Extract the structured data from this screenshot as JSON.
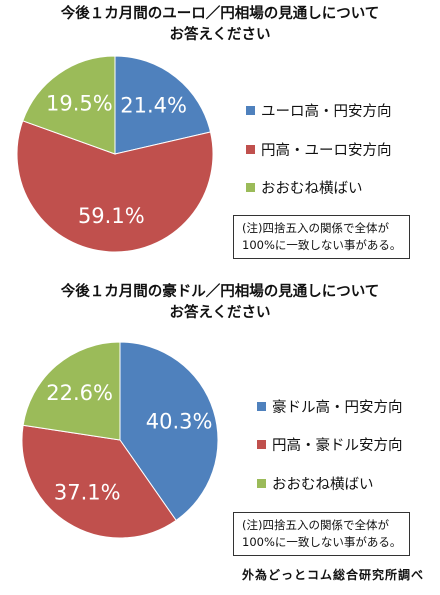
{
  "chart_data": [
    {
      "type": "pie",
      "title_line1": "今後１カ月間のユーロ／円相場の見通しについて",
      "title_line2": "お答えください",
      "slices": [
        {
          "label": "ユーロ高・円安方向",
          "value": 21.4,
          "display": "21.4%",
          "color": "#4f81bd"
        },
        {
          "label": "円高・ユーロ安方向",
          "value": 59.1,
          "display": "59.1%",
          "color": "#c0504d"
        },
        {
          "label": "おおむね横ばい",
          "value": 19.5,
          "display": "19.5%",
          "color": "#9bbb59"
        }
      ],
      "legend_position": "right",
      "note_line1": "(注)四捨五入の関係で全体が",
      "note_line2": "100%に一致しない事がある。"
    },
    {
      "type": "pie",
      "title_line1": "今後１カ月間の豪ドル／円相場の見通しについて",
      "title_line2": "お答えください",
      "slices": [
        {
          "label": "豪ドル高・円安方向",
          "value": 40.3,
          "display": "40.3%",
          "color": "#4f81bd"
        },
        {
          "label": "円高・豪ドル安方向",
          "value": 37.1,
          "display": "37.1%",
          "color": "#c0504d"
        },
        {
          "label": "おおむね横ばい",
          "value": 22.6,
          "display": "22.6%",
          "color": "#9bbb59"
        }
      ],
      "legend_position": "right",
      "note_line1": "(注)四捨五入の関係で全体が",
      "note_line2": "100%に一致しない事がある。"
    }
  ],
  "source": "外為どっとコム総合研究所調べ"
}
